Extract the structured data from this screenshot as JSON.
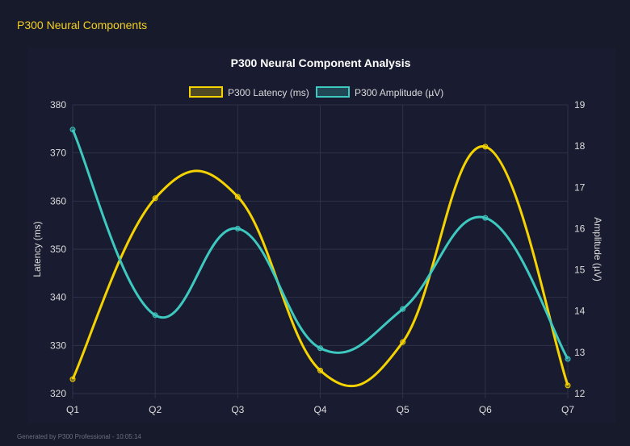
{
  "page_title": "P300 Neural Components",
  "footer": "Generated by P300 Professional - 10:05:14",
  "colors": {
    "latency": "#f5d300",
    "amplitude": "#3ec9c0",
    "grid": "#2e3248",
    "text": "#dcdcdc"
  },
  "chart_data": {
    "type": "line",
    "title": "P300 Neural Component Analysis",
    "categories": [
      "Q1",
      "Q2",
      "Q3",
      "Q4",
      "Q5",
      "Q6",
      "Q7"
    ],
    "y_left": {
      "label": "Latency (ms)",
      "range": [
        320,
        380
      ],
      "ticks": [
        320,
        330,
        340,
        350,
        360,
        370,
        380
      ]
    },
    "y_right": {
      "label": "Amplitude (µV)",
      "range": [
        12,
        19
      ],
      "ticks": [
        12,
        13,
        14,
        15,
        16,
        17,
        18,
        19
      ]
    },
    "grid": true,
    "legend_placement": "top",
    "series": [
      {
        "name": "P300 Latency (ms)",
        "axis": "left",
        "color": "#f5d300",
        "values": [
          323.0,
          360.6,
          360.9,
          324.8,
          330.7,
          371.3,
          321.7
        ]
      },
      {
        "name": "P300 Amplitude (µV)",
        "axis": "right",
        "color": "#3ec9c0",
        "values": [
          18.4,
          13.9,
          16.0,
          13.1,
          14.05,
          16.26,
          12.84
        ]
      }
    ]
  }
}
